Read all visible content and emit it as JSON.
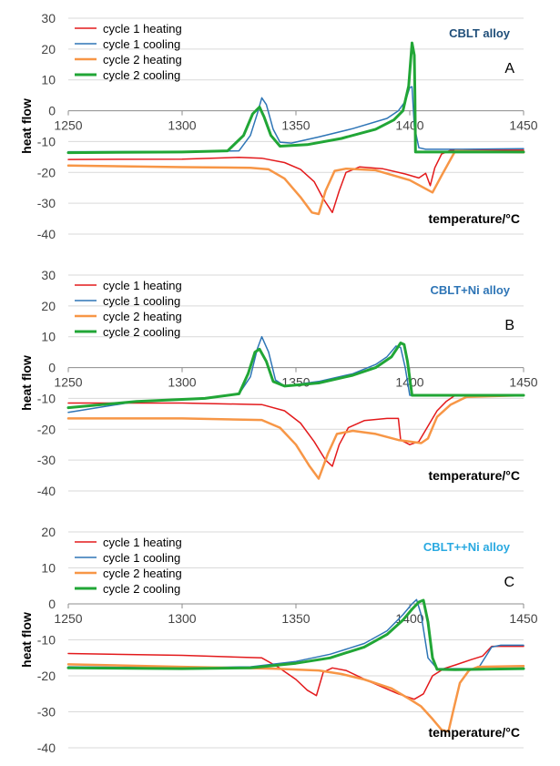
{
  "chart_data": [
    {
      "type": "line",
      "panel_letter": "A",
      "annotation": "CBLT alloy",
      "annotation_color": "#1f4e79",
      "xlabel": "temperature/°C",
      "ylabel": "heat flow",
      "xlim": [
        1250,
        1450
      ],
      "ylim": [
        -40,
        30
      ],
      "xticks": [
        1250,
        1300,
        1350,
        1400,
        1450
      ],
      "yticks": [
        30,
        20,
        10,
        0,
        -10,
        -20,
        -30,
        -40
      ],
      "legend_position": "top-left",
      "series": [
        {
          "name": "cycle 1 heating",
          "color": "#e31a1c",
          "width": 1.5,
          "x": [
            1250,
            1300,
            1325,
            1335,
            1345,
            1352,
            1358,
            1362,
            1366,
            1369,
            1372,
            1378,
            1388,
            1398,
            1404,
            1407,
            1409,
            1411,
            1414,
            1418,
            1425,
            1450
          ],
          "y": [
            -15.8,
            -15.7,
            -15.1,
            -15.4,
            -16.8,
            -19,
            -23,
            -28.5,
            -33,
            -26,
            -20,
            -18.2,
            -18.8,
            -20.5,
            -21.8,
            -20.3,
            -24.3,
            -18.5,
            -14,
            -12.8,
            -12.8,
            -12.8
          ]
        },
        {
          "name": "cycle 1 cooling",
          "color": "#2e75b6",
          "width": 1.5,
          "x": [
            1250,
            1310,
            1325,
            1330,
            1333,
            1335,
            1337,
            1340,
            1343,
            1348,
            1360,
            1375,
            1390,
            1395,
            1398,
            1400,
            1401,
            1402,
            1404,
            1407,
            1420,
            1450
          ],
          "y": [
            -13.3,
            -13.2,
            -13,
            -8,
            -1,
            4.2,
            2,
            -6,
            -10.2,
            -10.5,
            -8.5,
            -5.8,
            -2.5,
            0,
            3,
            7.5,
            7.8,
            -5,
            -12,
            -12.5,
            -12.5,
            -12.3
          ]
        },
        {
          "name": "cycle 2 heating",
          "color": "#f79646",
          "width": 2.5,
          "x": [
            1250,
            1300,
            1330,
            1338,
            1345,
            1352,
            1357,
            1360,
            1363,
            1367,
            1372,
            1385,
            1400,
            1410,
            1414,
            1420,
            1450
          ],
          "y": [
            -17.8,
            -18.3,
            -18.5,
            -19,
            -22,
            -28,
            -33,
            -33.5,
            -26,
            -19.5,
            -18.8,
            -19.3,
            -22.5,
            -26.5,
            -21,
            -13,
            -13.5
          ]
        },
        {
          "name": "cycle 2 cooling",
          "color": "#21a636",
          "width": 3,
          "x": [
            1250,
            1300,
            1320,
            1327,
            1331,
            1334,
            1336,
            1339,
            1343,
            1355,
            1370,
            1385,
            1393,
            1397,
            1399.5,
            1401,
            1402,
            1402.3,
            1402.5,
            1450
          ],
          "y": [
            -13.6,
            -13.4,
            -13,
            -8,
            -1,
            1.2,
            -2,
            -8,
            -11.5,
            -11,
            -9,
            -6,
            -3,
            0,
            8,
            22,
            18,
            5,
            -13.4,
            -13.4
          ]
        }
      ]
    },
    {
      "type": "line",
      "panel_letter": "B",
      "annotation": "CBLT+Ni alloy",
      "annotation_color": "#2e75b6",
      "xlabel": "temperature/°C",
      "ylabel": "heat flow",
      "xlim": [
        1250,
        1450
      ],
      "ylim": [
        -40,
        30
      ],
      "xticks": [
        1250,
        1300,
        1350,
        1400,
        1450
      ],
      "yticks": [
        30,
        20,
        10,
        0,
        -10,
        -20,
        -30,
        -40
      ],
      "legend_position": "top-left",
      "series": [
        {
          "name": "cycle 1 heating",
          "color": "#e31a1c",
          "width": 1.5,
          "x": [
            1250,
            1300,
            1335,
            1345,
            1352,
            1358,
            1363,
            1366,
            1369,
            1373,
            1380,
            1390,
            1395,
            1396,
            1400,
            1404,
            1408,
            1412,
            1416,
            1420,
            1450
          ],
          "y": [
            -11.5,
            -11.5,
            -12,
            -14,
            -18,
            -24,
            -30,
            -32,
            -25,
            -19.5,
            -17.2,
            -16.5,
            -16.5,
            -23.5,
            -25,
            -24,
            -19,
            -14,
            -11,
            -9,
            -9
          ]
        },
        {
          "name": "cycle 1 cooling",
          "color": "#2e75b6",
          "width": 1.5,
          "x": [
            1250,
            1280,
            1310,
            1325,
            1330,
            1333,
            1335,
            1338,
            1341,
            1345,
            1360,
            1375,
            1385,
            1390,
            1394,
            1396,
            1398,
            1400,
            1410,
            1450
          ],
          "y": [
            -14.5,
            -11,
            -10,
            -8.5,
            -3,
            6,
            10,
            5,
            -4,
            -6,
            -4.5,
            -2,
            1,
            3.5,
            7,
            6.5,
            0,
            -9,
            -9,
            -9
          ]
        },
        {
          "name": "cycle 2 heating",
          "color": "#f79646",
          "width": 2.5,
          "x": [
            1250,
            1300,
            1335,
            1343,
            1350,
            1356,
            1360,
            1364,
            1368,
            1375,
            1385,
            1395,
            1405,
            1408,
            1412,
            1418,
            1425,
            1450
          ],
          "y": [
            -16.5,
            -16.5,
            -17,
            -19.5,
            -25,
            -32,
            -36,
            -28,
            -21.5,
            -20.5,
            -21.5,
            -23.5,
            -24.5,
            -23,
            -16,
            -12,
            -9.5,
            -9
          ]
        },
        {
          "name": "cycle 2 cooling",
          "color": "#21a636",
          "width": 3,
          "x": [
            1250,
            1280,
            1310,
            1325,
            1329,
            1332,
            1334,
            1337,
            1340,
            1345,
            1360,
            1375,
            1385,
            1392,
            1396,
            1397.5,
            1399,
            1401,
            1410,
            1450
          ],
          "y": [
            -13,
            -11,
            -10,
            -8.5,
            -2,
            5,
            6,
            2,
            -4.5,
            -6,
            -5,
            -2.5,
            0,
            3.5,
            8,
            7.5,
            2,
            -9,
            -9,
            -9
          ]
        }
      ]
    },
    {
      "type": "line",
      "panel_letter": "C",
      "annotation": "CBLT++Ni alloy",
      "annotation_color": "#29a9e1",
      "xlabel": "temperature/°C",
      "ylabel": "heat flow",
      "xlim": [
        1250,
        1450
      ],
      "ylim": [
        -40,
        20
      ],
      "xticks": [
        1250,
        1300,
        1350,
        1400,
        1450
      ],
      "yticks": [
        20,
        10,
        0,
        -10,
        -20,
        -30,
        -40
      ],
      "legend_position": "top-left",
      "series": [
        {
          "name": "cycle 1 heating",
          "color": "#e31a1c",
          "width": 1.5,
          "x": [
            1250,
            1300,
            1335,
            1342,
            1350,
            1355,
            1359,
            1362,
            1366,
            1372,
            1382,
            1395,
            1402,
            1406,
            1410,
            1415,
            1420,
            1427,
            1432,
            1436,
            1440,
            1450
          ],
          "y": [
            -13.8,
            -14.3,
            -15,
            -17.5,
            -21,
            -24,
            -25.5,
            -19,
            -17.8,
            -18.5,
            -21.5,
            -25,
            -26.5,
            -25,
            -20,
            -18,
            -17,
            -15.5,
            -14.5,
            -11.8,
            -11.8,
            -11.8
          ]
        },
        {
          "name": "cycle 1 cooling",
          "color": "#2e75b6",
          "width": 1.5,
          "x": [
            1250,
            1300,
            1330,
            1350,
            1365,
            1380,
            1390,
            1397,
            1401,
            1403,
            1405,
            1408,
            1412,
            1418,
            1430,
            1436,
            1440,
            1450
          ],
          "y": [
            -17.5,
            -17.8,
            -17.5,
            -16,
            -14,
            -11,
            -7.5,
            -3,
            0,
            1.2,
            -3,
            -15,
            -18,
            -18,
            -18,
            -12,
            -11.5,
            -11.5
          ]
        },
        {
          "name": "cycle 2 heating",
          "color": "#f79646",
          "width": 2.5,
          "x": [
            1250,
            1300,
            1340,
            1360,
            1370,
            1380,
            1392,
            1400,
            1405,
            1410,
            1414,
            1417,
            1419,
            1422,
            1426,
            1430,
            1450
          ],
          "y": [
            -16.8,
            -17.5,
            -18,
            -18.5,
            -19.5,
            -21,
            -23.5,
            -26.5,
            -28.5,
            -32,
            -35,
            -35.5,
            -30,
            -22,
            -18.5,
            -17.5,
            -17.3
          ]
        },
        {
          "name": "cycle 2 cooling",
          "color": "#21a636",
          "width": 3,
          "x": [
            1250,
            1300,
            1330,
            1350,
            1365,
            1380,
            1390,
            1397,
            1401,
            1404,
            1406,
            1408,
            1410,
            1412,
            1420,
            1450
          ],
          "y": [
            -17.8,
            -18,
            -17.8,
            -16.5,
            -15,
            -12,
            -8.5,
            -4.5,
            -1.5,
            0.5,
            1,
            -5,
            -15,
            -18.2,
            -18.3,
            -18
          ]
        }
      ]
    }
  ]
}
